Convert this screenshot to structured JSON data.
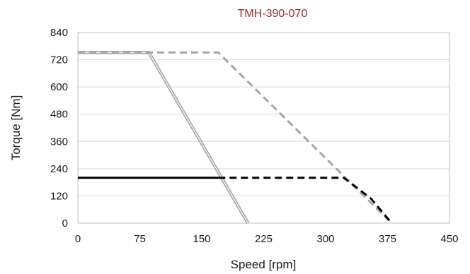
{
  "chart_data": {
    "type": "line",
    "title": "TMH-390-070",
    "xlabel": "Speed [rpm]",
    "ylabel": "Torque [Nm]",
    "xlim": [
      0,
      450
    ],
    "ylim": [
      0,
      840
    ],
    "xticks": [
      0,
      75,
      150,
      225,
      300,
      375,
      450
    ],
    "yticks": [
      0,
      120,
      240,
      360,
      480,
      600,
      720,
      840
    ],
    "grid": "horizontal",
    "legend": "none",
    "series": [
      {
        "points": [
          [
            0,
            752
          ],
          [
            86,
            752
          ],
          [
            206,
            0
          ]
        ],
        "color": "#a6a6a6",
        "style": "solid",
        "double": true
      },
      {
        "points": [
          [
            0,
            752
          ],
          [
            170,
            752
          ],
          [
            380,
            0
          ]
        ],
        "color": "#a6a6a6",
        "style": "dashed"
      },
      {
        "points": [
          [
            0,
            200
          ],
          [
            170,
            200
          ]
        ],
        "color": "#000000",
        "style": "solid"
      },
      {
        "points": [
          [
            170,
            200
          ],
          [
            322,
            200
          ],
          [
            355,
            108
          ],
          [
            380,
            0
          ]
        ],
        "color": "#000000",
        "style": "dashed"
      }
    ],
    "colors": {
      "title": "#9b2b2b",
      "grid": "#d9d9d9",
      "frame": "#bfbfbf"
    }
  }
}
